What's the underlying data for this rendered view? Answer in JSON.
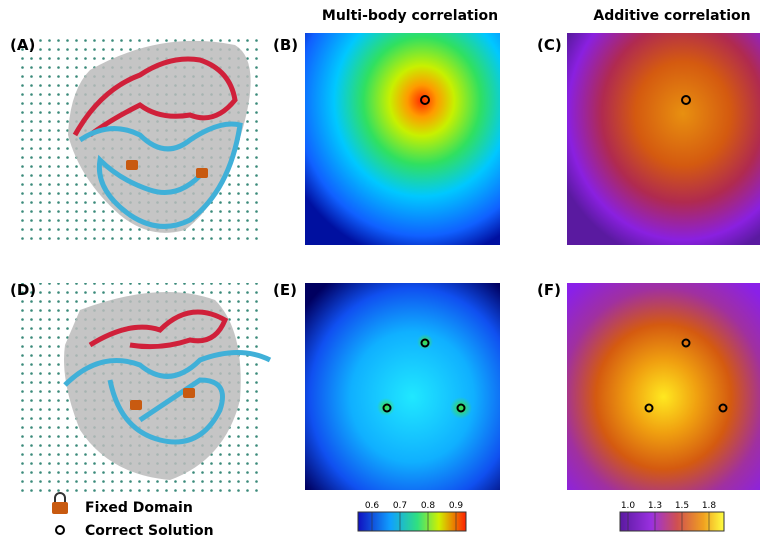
{
  "titles": {
    "multi_body": "Multi-body correlation",
    "additive": "Additive correlation"
  },
  "panels": {
    "a": "(A)",
    "b": "(B)",
    "c": "(C)",
    "d": "(D)",
    "e": "(E)",
    "f": "(F)"
  },
  "legend": {
    "fixed_domain": "Fixed Domain",
    "correct_solution": "Correct Solution"
  },
  "colorbars": {
    "multi_body": {
      "ticks": [
        "0.6",
        "0.7",
        "0.8",
        "0.9"
      ]
    },
    "additive": {
      "ticks": [
        "1.0",
        "1.3",
        "1.5",
        "1.8"
      ]
    }
  }
}
